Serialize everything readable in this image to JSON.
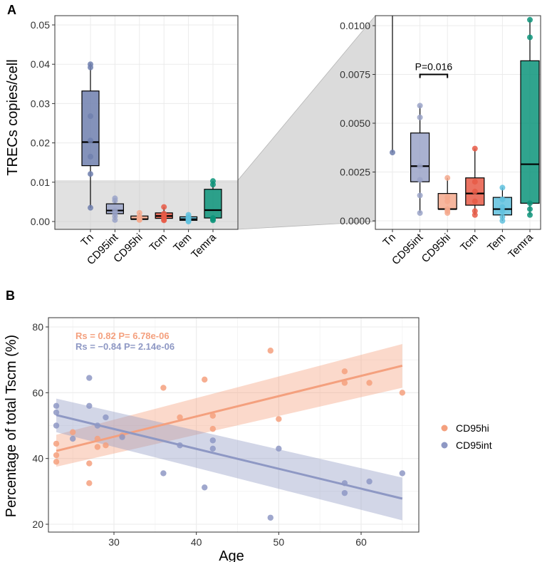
{
  "chart_data": [
    {
      "panel": "A",
      "type": "box",
      "ylabel": "TRECs copies/cell",
      "categories": [
        "Tn",
        "CD95int",
        "CD95hi",
        "Tcm",
        "Tem",
        "Temra"
      ],
      "colors": [
        "#6f7fae",
        "#9aa3c8",
        "#f4a98d",
        "#e85b47",
        "#5fc1de",
        "#0c947a"
      ],
      "ylim": [
        0,
        0.052
      ],
      "yticks": [
        0.0,
        0.01,
        0.02,
        0.03,
        0.04,
        0.05
      ],
      "ytick_labels": [
        "0.00",
        "0.01",
        "0.02",
        "0.03",
        "0.04",
        "0.05"
      ],
      "boxes": [
        {
          "q1": 0.0142,
          "median": 0.0202,
          "q3": 0.0332,
          "whisker_low": 0.0035,
          "whisker_high": 0.0402,
          "points": [
            0.04,
            0.0392,
            0.0268,
            0.0206,
            0.0165,
            0.0121,
            0.0035
          ]
        },
        {
          "q1": 0.002,
          "median": 0.0028,
          "q3": 0.0045,
          "whisker_low": 0.0004,
          "whisker_high": 0.0059,
          "points": [
            0.0059,
            0.0053,
            0.0028,
            0.0021,
            0.0013,
            0.0004
          ]
        },
        {
          "q1": 0.0006,
          "median": 0.0006,
          "q3": 0.0014,
          "whisker_low": 0.0004,
          "whisker_high": 0.0022,
          "points": [
            0.0022,
            0.0012,
            0.001,
            0.0006,
            0.0005,
            0.0004
          ]
        },
        {
          "q1": 0.0008,
          "median": 0.0014,
          "q3": 0.0022,
          "whisker_low": 0.0003,
          "whisker_high": 0.0037,
          "points": [
            0.0037,
            0.002,
            0.0015,
            0.001,
            0.0005,
            0.0003
          ]
        },
        {
          "q1": 0.0003,
          "median": 0.0006,
          "q3": 0.0012,
          "whisker_low": 0.0,
          "whisker_high": 0.0017,
          "points": [
            0.0017,
            0.0011,
            0.0007,
            0.0005,
            0.0002,
            0.0
          ]
        },
        {
          "q1": 0.0009,
          "median": 0.0029,
          "q3": 0.0082,
          "whisker_low": 0.0003,
          "whisker_high": 0.0103,
          "points": [
            0.0103,
            0.0094,
            0.0009,
            0.0006,
            0.0003
          ]
        }
      ],
      "zoom_region": [
        0,
        0.0105
      ]
    },
    {
      "panel": "A-zoom",
      "type": "box",
      "categories": [
        "Tn",
        "CD95int",
        "CD95hi",
        "Tcm",
        "Tem",
        "Temra"
      ],
      "ylim": [
        0,
        0.0105
      ],
      "yticks": [
        0.0,
        0.0025,
        0.005,
        0.0075,
        0.01
      ],
      "ytick_labels": [
        "0.0000",
        "0.0025",
        "0.0050",
        "0.0075",
        "0.0100"
      ],
      "annotation": {
        "text": "P=0.016",
        "between": [
          "CD95int",
          "CD95hi"
        ],
        "y": 0.0075
      }
    },
    {
      "panel": "B",
      "type": "scatter",
      "xlabel": "Age",
      "ylabel": "Percentage of total Tscm (%)",
      "xlim": [
        21,
        66
      ],
      "ylim": [
        18,
        82
      ],
      "xticks": [
        30,
        40,
        50,
        60
      ],
      "yticks": [
        20,
        40,
        60,
        80
      ],
      "series": [
        {
          "name": "CD95hi",
          "color": "#f4a07e",
          "stats": "Rs =  0.82  P=  6.78e-06",
          "fit": {
            "x": [
              23,
              65
            ],
            "y": [
              42.3,
              68.2
            ],
            "ci_low": [
              37.5,
              61.5
            ],
            "ci_high": [
              47.2,
              74.8
            ]
          },
          "points": [
            [
              23,
              44.5
            ],
            [
              23,
              41
            ],
            [
              23,
              39
            ],
            [
              25,
              48
            ],
            [
              27,
              38.5
            ],
            [
              27,
              32.5
            ],
            [
              28,
              43.5
            ],
            [
              28,
              46
            ],
            [
              29,
              44
            ],
            [
              31,
              47
            ],
            [
              36,
              61.5
            ],
            [
              38,
              52.5
            ],
            [
              41,
              64
            ],
            [
              42,
              53
            ],
            [
              42,
              49
            ],
            [
              49,
              72.8
            ],
            [
              50,
              52
            ],
            [
              58,
              66.5
            ],
            [
              58,
              63
            ],
            [
              61,
              63
            ],
            [
              65,
              60
            ]
          ]
        },
        {
          "name": "CD95int",
          "color": "#8e98c4",
          "stats": "Rs = −0.84  P=  2.14e-06",
          "fit": {
            "x": [
              23,
              65
            ],
            "y": [
              53.2,
              27.8
            ],
            "ci_low": [
              48.0,
              21.2
            ],
            "ci_high": [
              58.2,
              34.2
            ]
          },
          "points": [
            [
              23,
              56
            ],
            [
              23,
              54
            ],
            [
              23,
              50
            ],
            [
              25,
              46
            ],
            [
              27,
              64.5
            ],
            [
              27,
              56
            ],
            [
              28,
              50
            ],
            [
              29,
              52.5
            ],
            [
              31,
              46.5
            ],
            [
              36,
              35.5
            ],
            [
              38,
              44
            ],
            [
              41,
              31.2
            ],
            [
              42,
              45.5
            ],
            [
              42,
              43
            ],
            [
              49,
              22
            ],
            [
              50,
              43
            ],
            [
              58,
              32.5
            ],
            [
              58,
              29.5
            ],
            [
              61,
              33
            ],
            [
              65,
              35.5
            ]
          ]
        }
      ]
    }
  ],
  "labels": {
    "panel_a": "A",
    "panel_b": "B",
    "a_ylabel": "TRECs copies/cell",
    "b_xlabel": "Age",
    "b_ylabel": "Percentage of total Tscm (%)",
    "legend": [
      "CD95hi",
      "CD95int"
    ]
  }
}
